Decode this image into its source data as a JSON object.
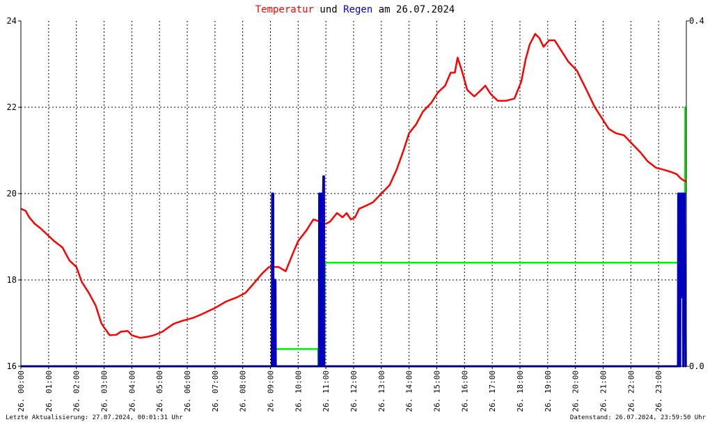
{
  "title": {
    "part1": "Temperatur",
    "part2": " und ",
    "part3": "Regen",
    "part4": " am 26.07.2024"
  },
  "colors": {
    "temperature": "#ff0000",
    "rain": "#0000c0",
    "rain_cumulative": "#00ee00",
    "grid": "#000000",
    "title_dark": "#000000"
  },
  "footer": {
    "left": "Letzte Aktualisierung: 27.07.2024, 00:01:31 Uhr",
    "right": "Datenstand: 26.07.2024, 23:59:50 Uhr"
  },
  "chart_data": {
    "type": "line",
    "x_axis": {
      "unit": "hour",
      "range": [
        0,
        24
      ],
      "tick_labels": [
        "26. 00:00",
        "26. 01:00",
        "26. 02:00",
        "26. 03:00",
        "26. 04:00",
        "26. 05:00",
        "26. 06:00",
        "26. 07:00",
        "26. 08:00",
        "26. 09:00",
        "26. 10:00",
        "26. 11:00",
        "26. 12:00",
        "26. 13:00",
        "26. 14:00",
        "26. 15:00",
        "26. 16:00",
        "26. 17:00",
        "26. 18:00",
        "26. 19:00",
        "26. 20:00",
        "26. 21:00",
        "26. 22:00",
        "26. 23:00"
      ]
    },
    "y_left": {
      "range": [
        16,
        24
      ],
      "ticks": [
        "16",
        "18",
        "20",
        "22",
        "24"
      ]
    },
    "y_right": {
      "range": [
        0,
        0.4
      ],
      "ticks": [
        "0.0",
        "0.4"
      ]
    },
    "grid": true,
    "series": [
      {
        "name": "Temperatur",
        "axis": "left",
        "x": [
          0,
          0.17,
          0.3,
          0.5,
          0.7,
          0.95,
          1.2,
          1.5,
          1.75,
          2.0,
          2.2,
          2.45,
          2.7,
          2.9,
          3.0,
          3.2,
          3.45,
          3.6,
          3.85,
          4.0,
          4.3,
          4.55,
          4.8,
          5.1,
          5.5,
          5.8,
          6.2,
          6.5,
          7.0,
          7.4,
          7.8,
          8.1,
          8.4,
          8.7,
          8.95,
          9.3,
          9.55,
          9.8,
          10.0,
          10.3,
          10.55,
          10.8,
          11.0,
          11.15,
          11.4,
          11.6,
          11.75,
          11.9,
          12.05,
          12.2,
          12.45,
          12.7,
          13.0,
          13.3,
          13.55,
          13.8,
          14.0,
          14.25,
          14.5,
          14.8,
          15.05,
          15.3,
          15.5,
          15.65,
          15.75,
          15.9,
          16.1,
          16.35,
          16.6,
          16.75,
          16.95,
          17.2,
          17.5,
          17.8,
          18.05,
          18.2,
          18.35,
          18.55,
          18.7,
          18.85,
          19.05,
          19.25,
          19.5,
          19.75,
          20.05,
          20.4,
          20.7,
          21.0,
          21.2,
          21.45,
          21.75,
          22.05,
          22.35,
          22.6,
          22.9,
          23.2,
          23.45,
          23.65,
          23.8,
          23.92,
          24.0
        ],
        "y": [
          19.65,
          19.6,
          19.45,
          19.3,
          19.2,
          19.05,
          18.9,
          18.75,
          18.45,
          18.3,
          17.95,
          17.7,
          17.4,
          17.0,
          16.9,
          16.72,
          16.73,
          16.8,
          16.82,
          16.72,
          16.66,
          16.68,
          16.72,
          16.8,
          16.98,
          17.05,
          17.12,
          17.2,
          17.35,
          17.5,
          17.6,
          17.7,
          17.92,
          18.15,
          18.3,
          18.3,
          18.2,
          18.6,
          18.9,
          19.15,
          19.4,
          19.35,
          19.3,
          19.35,
          19.55,
          19.45,
          19.55,
          19.4,
          19.45,
          19.65,
          19.72,
          19.8,
          20.0,
          20.2,
          20.55,
          21.0,
          21.4,
          21.6,
          21.9,
          22.1,
          22.35,
          22.5,
          22.8,
          22.8,
          23.15,
          22.85,
          22.4,
          22.25,
          22.4,
          22.5,
          22.3,
          22.15,
          22.15,
          22.2,
          22.6,
          23.1,
          23.45,
          23.7,
          23.6,
          23.4,
          23.55,
          23.55,
          23.3,
          23.05,
          22.85,
          22.4,
          22.0,
          21.7,
          21.5,
          21.4,
          21.35,
          21.15,
          20.95,
          20.75,
          20.6,
          20.55,
          20.5,
          20.45,
          20.35,
          20.3,
          20.28
        ]
      },
      {
        "name": "Regen",
        "axis": "right",
        "x": [
          0,
          9.05,
          9.06,
          9.1,
          9.11,
          9.13,
          9.14,
          9.18,
          9.19,
          10.75,
          10.76,
          10.78,
          10.79,
          10.82,
          10.83,
          10.85,
          10.86,
          10.88,
          10.89,
          10.9,
          10.91,
          10.93,
          10.94,
          10.97,
          10.98,
          23.7,
          23.71,
          23.75,
          23.76,
          23.78,
          23.79,
          23.8,
          23.81,
          23.83,
          23.84,
          23.88,
          23.89,
          23.9,
          23.91,
          23.94,
          23.95,
          23.97,
          23.98,
          24.0
        ],
        "y": [
          0,
          0,
          0.2,
          0.2,
          0,
          0,
          0.1,
          0.1,
          0,
          0,
          0.2,
          0.2,
          0,
          0,
          0.2,
          0.2,
          0,
          0,
          0.2,
          0.2,
          0.22,
          0.22,
          0,
          0,
          0,
          0,
          0.2,
          0.2,
          0,
          0,
          0.2,
          0.2,
          0.08,
          0.08,
          0.2,
          0.2,
          0,
          0,
          0.2,
          0.2,
          0.1,
          0.1,
          0,
          0
        ]
      },
      {
        "axis": "right",
        "x": [
          9.1,
          10.72,
          10.73,
          10.95,
          10.96,
          23.7,
          23.75,
          23.8,
          23.85,
          23.95,
          23.96,
          24.0
        ],
        "y": [
          0.02,
          0.02,
          0,
          0,
          0.12,
          0.12,
          0.15,
          0.18,
          0.18,
          0.18,
          0.3,
          0.3
        ]
      }
    ]
  }
}
